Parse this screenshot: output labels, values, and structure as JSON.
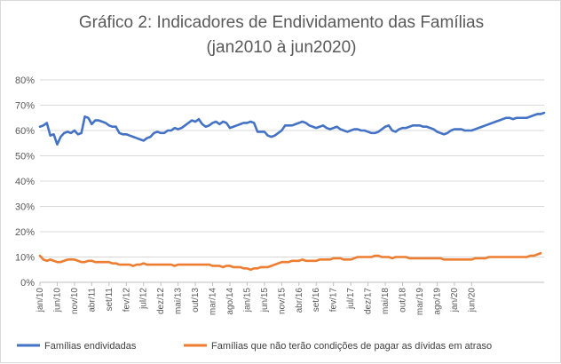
{
  "chart_data": {
    "type": "line",
    "title": "Gráfico 2: Indicadores de Endividamento das Famílias",
    "subtitle": "(jan2010 à jun2020)",
    "xlabel": "",
    "ylabel": "",
    "ylim": [
      0,
      80
    ],
    "y_ticks": [
      "0%",
      "10%",
      "20%",
      "30%",
      "40%",
      "50%",
      "60%",
      "70%",
      "80%"
    ],
    "x_tick_labels": [
      "jan/10",
      "jun/10",
      "nov/10",
      "abr/11",
      "set/11",
      "fev/12",
      "jul/12",
      "dez/12",
      "mai/13",
      "out/13",
      "mar/14",
      "ago/14",
      "jan/15",
      "jun/15",
      "nov/15",
      "abr/16",
      "set/16",
      "fev/17",
      "jul/17",
      "dez/17",
      "mai/18",
      "out/18",
      "mar/19",
      "ago/19",
      "jan/20",
      "jun/20"
    ],
    "x_start": "jan/10",
    "x_end": "jun/20",
    "grid": "horizontal",
    "legend_position": "bottom",
    "series": [
      {
        "name": "Famílias endividadas",
        "color": "#4472c4",
        "values": [
          61.5,
          62,
          63,
          58,
          58.5,
          54.5,
          57.5,
          59,
          59.5,
          59,
          60,
          58.5,
          59,
          65.5,
          65,
          62.5,
          64,
          64,
          63.5,
          63,
          62,
          61.5,
          61.5,
          59,
          58.5,
          58.5,
          58,
          57.5,
          57,
          56.5,
          56,
          57,
          57.5,
          59,
          59.5,
          59,
          59,
          60,
          60,
          61,
          60.5,
          61,
          62,
          63,
          64,
          63.5,
          64.5,
          62.5,
          61.5,
          62,
          63,
          63.5,
          62.5,
          63.5,
          63,
          61,
          61.5,
          62,
          62.5,
          63,
          63,
          63.5,
          63,
          59.5,
          59.5,
          59.5,
          58,
          57.5,
          58,
          59,
          60,
          62,
          62,
          62,
          62.5,
          63,
          63.5,
          63,
          62,
          61.5,
          61,
          61.5,
          62,
          61,
          60.5,
          61,
          61.5,
          60.5,
          60,
          59.5,
          60,
          60.5,
          60.5,
          60,
          60,
          59.5,
          59,
          59,
          59.5,
          60.5,
          61.5,
          62,
          60,
          59.5,
          60.5,
          61,
          61,
          61.5,
          62,
          62,
          62,
          61.5,
          61.5,
          61,
          60.5,
          59.5,
          59,
          58.5,
          59,
          60,
          60.5,
          60.5,
          60.5,
          60,
          60,
          60,
          60.5,
          61,
          61.5,
          62,
          62.5,
          63,
          63.5,
          64,
          64.5,
          65,
          65,
          64.5,
          65,
          65,
          65,
          65,
          65.5,
          66,
          66.5,
          66.5,
          67
        ]
      },
      {
        "name": "Famílias que não terão condições de pagar as dívidas em atraso",
        "color": "#ed7d31",
        "values": [
          10.5,
          9,
          8.5,
          9,
          8.5,
          8,
          8,
          8.5,
          9,
          9,
          9,
          8.5,
          8,
          8,
          8.5,
          8.5,
          8,
          8,
          8,
          8,
          8,
          7.5,
          7.5,
          7,
          7,
          7,
          7,
          6.5,
          7,
          7,
          7.5,
          7,
          7,
          7,
          7,
          7,
          7,
          7,
          7,
          6.5,
          7,
          7,
          7,
          7,
          7,
          7,
          7,
          7,
          7,
          7,
          6.5,
          6.5,
          6.5,
          6,
          6.5,
          6.5,
          6,
          6,
          6,
          5.5,
          5.5,
          5,
          5.5,
          5.5,
          6,
          6,
          6,
          6.5,
          7,
          7.5,
          8,
          8,
          8,
          8.5,
          8.5,
          8.5,
          9,
          8.5,
          8.5,
          8.5,
          8.5,
          9,
          9,
          9,
          9,
          9.5,
          9.5,
          9.5,
          9,
          9,
          9,
          9.5,
          10,
          10,
          10,
          10,
          10,
          10.5,
          10.5,
          10,
          10,
          10,
          9.5,
          10,
          10,
          10,
          10,
          9.5,
          9.5,
          9.5,
          9.5,
          9.5,
          9.5,
          9.5,
          9.5,
          9.5,
          9.5,
          9,
          9,
          9,
          9,
          9,
          9,
          9,
          9,
          9,
          9.5,
          9.5,
          9.5,
          9.5,
          10,
          10,
          10,
          10,
          10,
          10,
          10,
          10,
          10,
          10,
          10,
          10,
          10.5,
          10.5,
          11,
          11.5
        ]
      }
    ]
  }
}
